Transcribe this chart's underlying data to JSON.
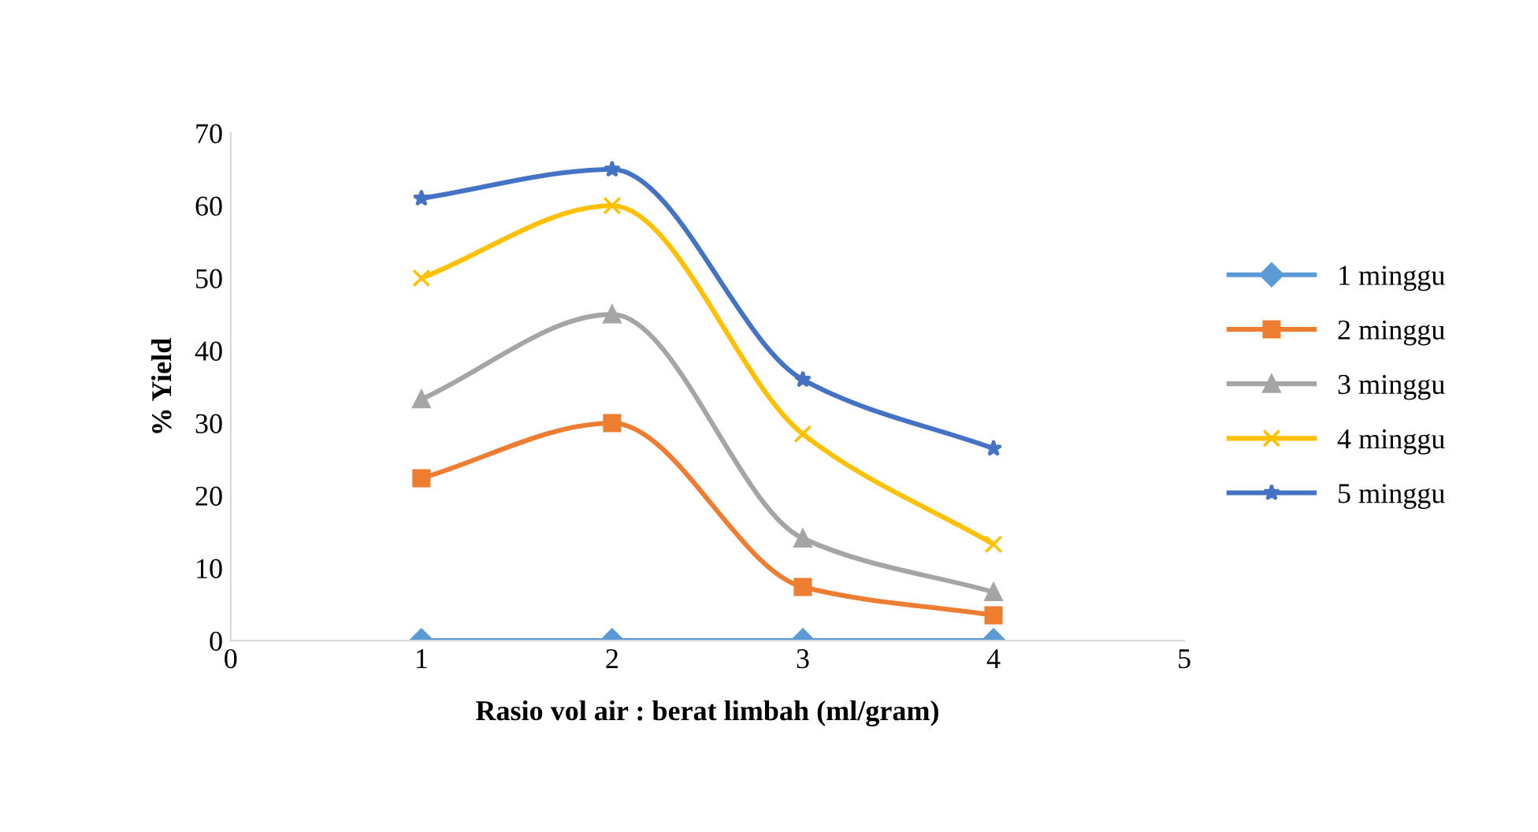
{
  "chart_data": {
    "type": "line",
    "xlabel": "Rasio vol air : berat limbah (ml/gram)",
    "ylabel": "% Yield",
    "x": [
      1,
      2,
      3,
      4
    ],
    "xlim": [
      0,
      5
    ],
    "xticks": [
      0,
      1,
      2,
      3,
      4,
      5
    ],
    "ylim": [
      0,
      70
    ],
    "yticks": [
      0,
      10,
      20,
      30,
      40,
      50,
      60,
      70
    ],
    "grid": false,
    "legend": "right",
    "line_style": "solid",
    "series": [
      {
        "name": "1 minggu",
        "color": "#5b9bd5",
        "marker": "diamond",
        "values": [
          0,
          0,
          0,
          0
        ]
      },
      {
        "name": "2 minggu",
        "color": "#ed7d31",
        "marker": "square",
        "values": [
          22.4,
          30,
          7.4,
          3.5
        ]
      },
      {
        "name": "3 minggu",
        "color": "#a5a5a5",
        "marker": "triangle",
        "values": [
          33.3,
          45,
          14.1,
          6.7
        ]
      },
      {
        "name": "4 minggu",
        "color": "#ffc000",
        "marker": "cross",
        "values": [
          50,
          60,
          28.5,
          13.3
        ]
      },
      {
        "name": "5 minggu",
        "color": "#4472c4",
        "marker": "star",
        "values": [
          61,
          65,
          36,
          26.5
        ]
      }
    ]
  }
}
